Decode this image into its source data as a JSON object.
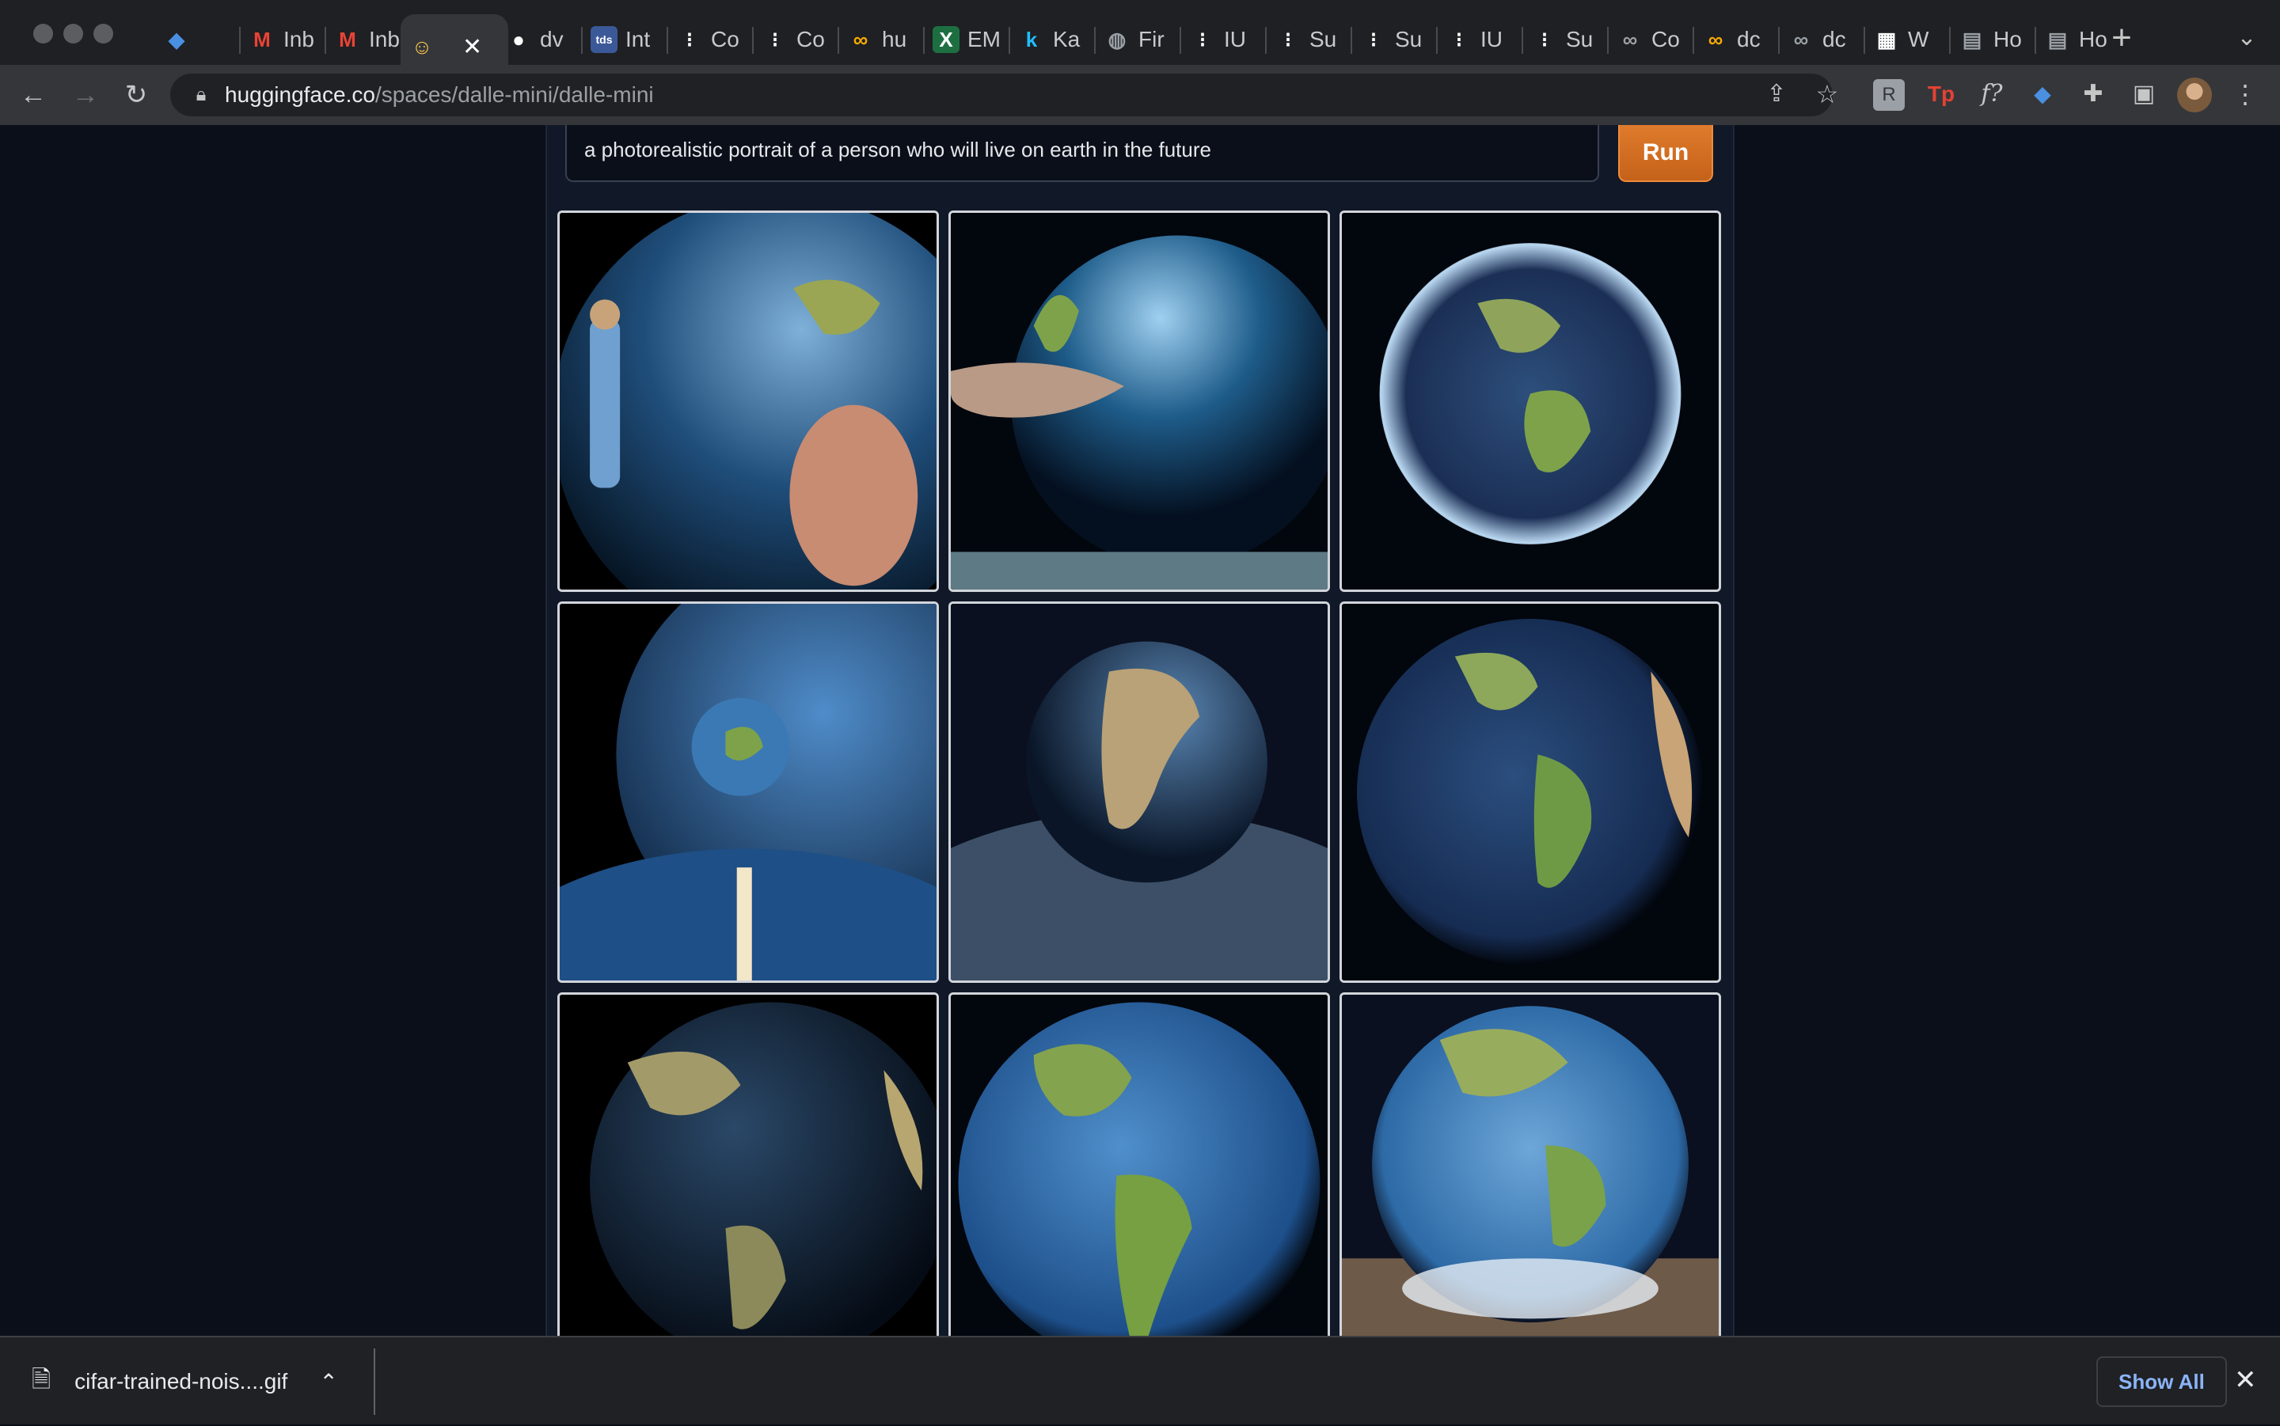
{
  "browser": {
    "tabs": [
      {
        "icon": "gem-icon",
        "label": "",
        "color": "#4a90e2"
      },
      {
        "icon": "gmail-icon",
        "label": "Inb",
        "color": "#ea4335"
      },
      {
        "icon": "gmail-icon",
        "label": "Inb",
        "color": "#ea4335"
      },
      {
        "icon": "huggingface-icon",
        "label": "",
        "color": "#ffcc4d",
        "active": true
      },
      {
        "icon": "github-icon",
        "label": "dv",
        "color": "#ffffff"
      },
      {
        "icon": "tds-icon",
        "label": "Int",
        "color": "#3b5998"
      },
      {
        "icon": "medium-icon",
        "label": "Co",
        "color": "#ffffff"
      },
      {
        "icon": "medium-icon",
        "label": "Co",
        "color": "#ffffff"
      },
      {
        "icon": "colab-icon",
        "label": "hu",
        "color": "#f9ab00"
      },
      {
        "icon": "excel-icon",
        "label": "EM",
        "color": "#1d6f42"
      },
      {
        "icon": "kaggle-icon",
        "label": "Ka",
        "color": "#20beff"
      },
      {
        "icon": "globe-icon",
        "label": "Fir",
        "color": "#9aa0a6"
      },
      {
        "icon": "medium-icon",
        "label": "IU",
        "color": "#ffffff"
      },
      {
        "icon": "medium-icon",
        "label": "Su",
        "color": "#ffffff"
      },
      {
        "icon": "medium-icon",
        "label": "Su",
        "color": "#ffffff"
      },
      {
        "icon": "medium-icon",
        "label": "IU",
        "color": "#ffffff"
      },
      {
        "icon": "medium-icon",
        "label": "Su",
        "color": "#ffffff"
      },
      {
        "icon": "colab-icon",
        "label": "Co",
        "color": "#9aa0a6"
      },
      {
        "icon": "colab-icon",
        "label": "dc",
        "color": "#f9ab00"
      },
      {
        "icon": "colab-icon",
        "label": "dc",
        "color": "#9aa0a6"
      },
      {
        "icon": "qr-icon",
        "label": "W",
        "color": "#ffffff"
      },
      {
        "icon": "page-icon",
        "label": "Ho",
        "color": "#9aa0a6"
      },
      {
        "icon": "page-icon",
        "label": "Ho",
        "color": "#9aa0a6"
      }
    ],
    "address": {
      "host": "huggingface.co",
      "path": "/spaces/dalle-mini/dalle-mini"
    }
  },
  "page": {
    "prompt_value": "a photorealistic portrait  of a person who  will live on earth in the future",
    "run_label": "Run",
    "images": [
      "person-and-earth",
      "hand-touching-globe",
      "earth-with-aura",
      "small-earth-above-horizon",
      "earth-over-planet-surface",
      "earth-americas-closeup",
      "dark-earth",
      "earth-south-america",
      "earth-over-cloud-field"
    ]
  },
  "downloads": {
    "file_name": "cifar-trained-nois....gif",
    "show_all_label": "Show All"
  }
}
